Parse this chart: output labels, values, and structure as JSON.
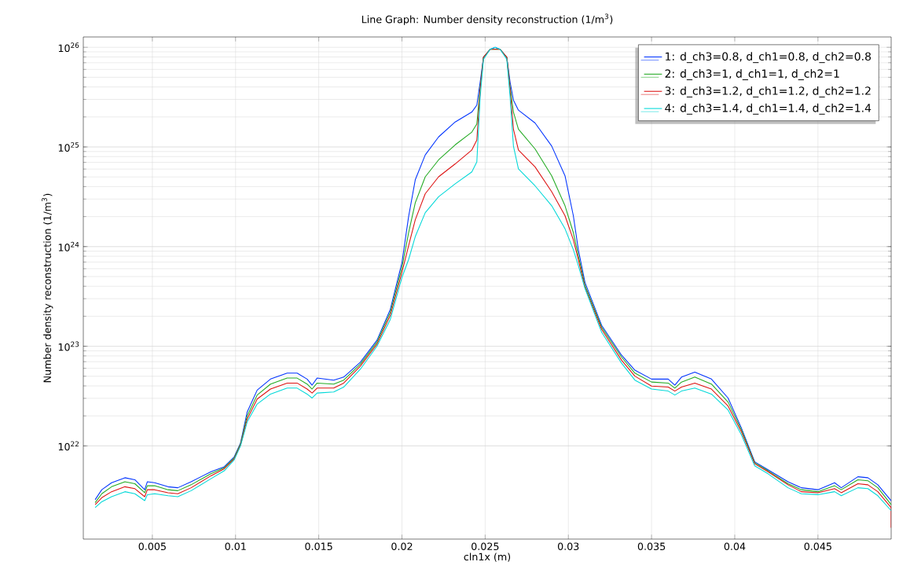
{
  "chart_data": {
    "type": "line",
    "title": "Line Graph: Number density reconstruction (1/m$^{3}$)",
    "xlabel": "cln1x (m)",
    "ylabel": "Number density reconstruction (1/m$^{3}$)",
    "x": [
      0.00156,
      0.00196,
      0.00255,
      0.00335,
      0.00395,
      0.00454,
      0.0047,
      0.00514,
      0.00594,
      0.00653,
      0.00733,
      0.00852,
      0.00932,
      0.00992,
      0.0103,
      0.0107,
      0.0113,
      0.0121,
      0.0131,
      0.0137,
      0.0143,
      0.0146,
      0.0149,
      0.0159,
      0.0165,
      0.0175,
      0.0185,
      0.0193,
      0.02,
      0.0204,
      0.0208,
      0.0214,
      0.0222,
      0.0232,
      0.0242,
      0.0245,
      0.0247,
      0.0249,
      0.0253,
      0.0256,
      0.0259,
      0.0263,
      0.0265,
      0.0267,
      0.027,
      0.028,
      0.029,
      0.0298,
      0.0303,
      0.0306,
      0.031,
      0.032,
      0.0332,
      0.034,
      0.035,
      0.036,
      0.0364,
      0.0368,
      0.0376,
      0.0386,
      0.0396,
      0.0404,
      0.0412,
      0.042,
      0.0432,
      0.044,
      0.045,
      0.046,
      0.0464,
      0.0474,
      0.048,
      0.0486,
      0.0494
    ],
    "series": [
      {
        "name": "1: d_ch3=0.8, d_ch1=0.8, d_ch2=0.8",
        "color": "#0033ff",
        "values": [
          2.88e+21,
          3.63e+21,
          4.27e+21,
          4.79e+21,
          4.57e+21,
          3.63e+21,
          4.37e+21,
          4.27e+21,
          3.89e+21,
          3.8e+21,
          4.37e+21,
          5.5e+21,
          6.17e+21,
          7.76e+21,
          1.07e+22,
          2.19e+22,
          3.63e+22,
          4.68e+22,
          5.37e+22,
          5.37e+22,
          4.68e+22,
          4.07e+22,
          4.79e+22,
          4.57e+22,
          4.9e+22,
          6.92e+22,
          1.15e+23,
          2.34e+23,
          6.92e+23,
          2e+24,
          4.68e+24,
          8.32e+24,
          1.26e+25,
          1.78e+25,
          2.24e+25,
          2.63e+25,
          4.47e+25,
          7.94e+25,
          9.55e+25,
          1e+26,
          9.55e+25,
          7.94e+25,
          4.47e+25,
          2.95e+25,
          2.34e+25,
          1.74e+25,
          1.02e+25,
          5.13e+24,
          2.04e+24,
          9.33e+23,
          4.37e+23,
          1.62e+23,
          8.13e+22,
          5.75e+22,
          4.68e+22,
          4.68e+22,
          4.07e+22,
          4.9e+22,
          5.5e+22,
          4.68e+22,
          3.02e+22,
          1.51e+22,
          6.92e+21,
          5.75e+21,
          4.37e+21,
          3.8e+21,
          3.63e+21,
          4.27e+21,
          3.8e+21,
          4.9e+21,
          4.79e+21,
          4.07e+21,
          2.82e+21
        ]
      },
      {
        "name": "2: d_ch3=1, d_ch1=1, d_ch2=1",
        "color": "#22aa22",
        "values": [
          2.69e+21,
          3.31e+21,
          3.89e+21,
          4.37e+21,
          4.17e+21,
          3.39e+21,
          3.98e+21,
          3.98e+21,
          3.63e+21,
          3.55e+21,
          4.07e+21,
          5.25e+21,
          6.03e+21,
          7.59e+21,
          1.05e+22,
          2e+22,
          3.24e+22,
          4.17e+22,
          4.79e+22,
          4.79e+22,
          4.17e+22,
          3.72e+22,
          4.27e+22,
          4.17e+22,
          4.57e+22,
          6.61e+22,
          1.1e+23,
          2.19e+23,
          6.17e+23,
          1.38e+24,
          2.75e+24,
          5.01e+24,
          7.41e+24,
          1.05e+25,
          1.41e+25,
          1.7e+25,
          3.98e+25,
          7.94e+25,
          9.55e+25,
          null,
          9.55e+25,
          7.94e+25,
          3.98e+25,
          2.24e+25,
          1.51e+25,
          9.55e+24,
          5.13e+24,
          2.57e+24,
          1.38e+24,
          8.13e+23,
          4.07e+23,
          1.55e+23,
          7.76e+22,
          5.37e+22,
          4.37e+22,
          4.27e+22,
          3.8e+22,
          4.37e+22,
          4.9e+22,
          4.17e+22,
          2.75e+22,
          1.45e+22,
          6.76e+21,
          5.62e+21,
          4.17e+21,
          3.63e+21,
          3.47e+21,
          3.98e+21,
          3.63e+21,
          4.57e+21,
          4.47e+21,
          3.8e+21,
          2.57e+21
        ]
      },
      {
        "name": "3: d_ch3=1.2, d_ch1=1.2, d_ch2=1.2",
        "color": "#dd1111",
        "x": [
          0.00156,
          0.00196,
          0.00255,
          0.00335,
          0.00395,
          0.00454,
          0.0047,
          0.00514,
          0.00594,
          0.00653,
          0.00733,
          0.00852,
          0.00932,
          0.00992,
          0.0103,
          0.0107,
          0.0113,
          0.0121,
          0.0131,
          0.0137,
          0.0143,
          0.0146,
          0.0149,
          0.0159,
          0.0165,
          0.0175,
          0.0185,
          0.0193,
          0.02,
          0.0204,
          0.0208,
          0.0214,
          0.0222,
          0.0232,
          0.0242,
          0.0245,
          0.0247,
          0.0249,
          0.0253,
          0.0256,
          0.0259,
          0.0263,
          0.0265,
          0.0267,
          0.027,
          0.028,
          0.029,
          0.0298,
          0.0303,
          0.0306,
          0.031,
          0.032,
          0.0332,
          0.034,
          0.035,
          0.036,
          0.0364,
          0.0368,
          0.0376,
          0.0386,
          0.0396,
          0.0404,
          0.0412,
          0.042,
          0.0432,
          0.044,
          0.045,
          0.046,
          0.0464,
          0.0474,
          0.048,
          0.0486,
          0.0494,
          0.0494
        ],
        "values": [
          2.57e+21,
          3.02e+21,
          3.47e+21,
          3.89e+21,
          3.72e+21,
          3.09e+21,
          3.63e+21,
          3.63e+21,
          3.39e+21,
          3.31e+21,
          3.8e+21,
          5.01e+21,
          5.89e+21,
          7.41e+21,
          1.02e+22,
          1.86e+22,
          2.95e+22,
          3.72e+22,
          4.27e+22,
          4.27e+22,
          3.72e+22,
          3.39e+22,
          3.8e+22,
          3.8e+22,
          4.27e+22,
          6.31e+22,
          1.05e+23,
          2.04e+23,
          5.5e+23,
          1.02e+24,
          1.86e+24,
          3.39e+24,
          5.01e+24,
          6.76e+24,
          9.33e+24,
          1.17e+25,
          3.72e+25,
          7.94e+25,
          9.55e+25,
          null,
          9.55e+25,
          7.94e+25,
          3.72e+25,
          1.51e+25,
          9.33e+24,
          6.31e+24,
          3.55e+24,
          2.04e+24,
          1.17e+24,
          7.41e+23,
          3.89e+23,
          1.48e+23,
          7.24e+22,
          5.01e+22,
          3.98e+22,
          3.89e+22,
          3.55e+22,
          3.89e+22,
          4.27e+22,
          3.72e+22,
          2.51e+22,
          1.38e+22,
          6.61e+21,
          5.5e+21,
          4.07e+21,
          3.47e+21,
          3.39e+21,
          3.72e+21,
          3.39e+21,
          4.17e+21,
          4.07e+21,
          3.47e+21,
          2.4e+21,
          1.51e+21
        ]
      },
      {
        "name": "4: d_ch3=1.4, d_ch1=1.4, d_ch2=1.4",
        "color": "#00d8d8",
        "values": [
          2.4e+21,
          2.75e+21,
          3.09e+21,
          3.47e+21,
          3.31e+21,
          2.82e+21,
          3.24e+21,
          3.31e+21,
          3.16e+21,
          3.09e+21,
          3.55e+21,
          4.68e+21,
          5.62e+21,
          7.24e+21,
          1e+22,
          1.74e+22,
          2.63e+22,
          3.31e+22,
          3.8e+22,
          3.8e+22,
          3.31e+22,
          3.02e+22,
          3.39e+22,
          3.47e+22,
          3.89e+22,
          5.89e+22,
          1e+23,
          1.86e+23,
          4.9e+23,
          7.41e+23,
          1.26e+24,
          2.19e+24,
          3.16e+24,
          4.27e+24,
          5.62e+24,
          7.08e+24,
          3.16e+25,
          7.59e+25,
          9.55e+25,
          1e+26,
          9.55e+25,
          7.59e+25,
          3.16e+25,
          1.02e+25,
          6.03e+24,
          4.07e+24,
          2.57e+24,
          1.51e+24,
          9.33e+23,
          6.46e+23,
          3.8e+23,
          1.38e+23,
          6.76e+22,
          4.57e+22,
          3.72e+22,
          3.55e+22,
          3.24e+22,
          3.55e+22,
          3.8e+22,
          3.31e+22,
          2.29e+22,
          1.29e+22,
          6.31e+21,
          5.25e+21,
          3.8e+21,
          3.31e+21,
          3.24e+21,
          3.47e+21,
          3.16e+21,
          3.8e+21,
          3.72e+21,
          3.16e+21,
          2.24e+21
        ]
      }
    ],
    "xlim": [
      0.00085,
      0.0494
    ],
    "ylim": [
      1.16e+21,
      1.27e+26
    ],
    "xticks": [
      0.005,
      0.01,
      0.015,
      0.02,
      0.025,
      0.03,
      0.035,
      0.04,
      0.045
    ],
    "yticks": [
      {
        "value": 1e+22,
        "label": "10$^{22}$"
      },
      {
        "value": 1e+23,
        "label": "10$^{23}$"
      },
      {
        "value": 1e+24,
        "label": "10$^{24}$"
      },
      {
        "value": 1e+25,
        "label": "10$^{25}$"
      },
      {
        "value": 1e+26,
        "label": "10$^{26}$"
      }
    ],
    "log": "y",
    "grid": true,
    "legend": "top right"
  }
}
